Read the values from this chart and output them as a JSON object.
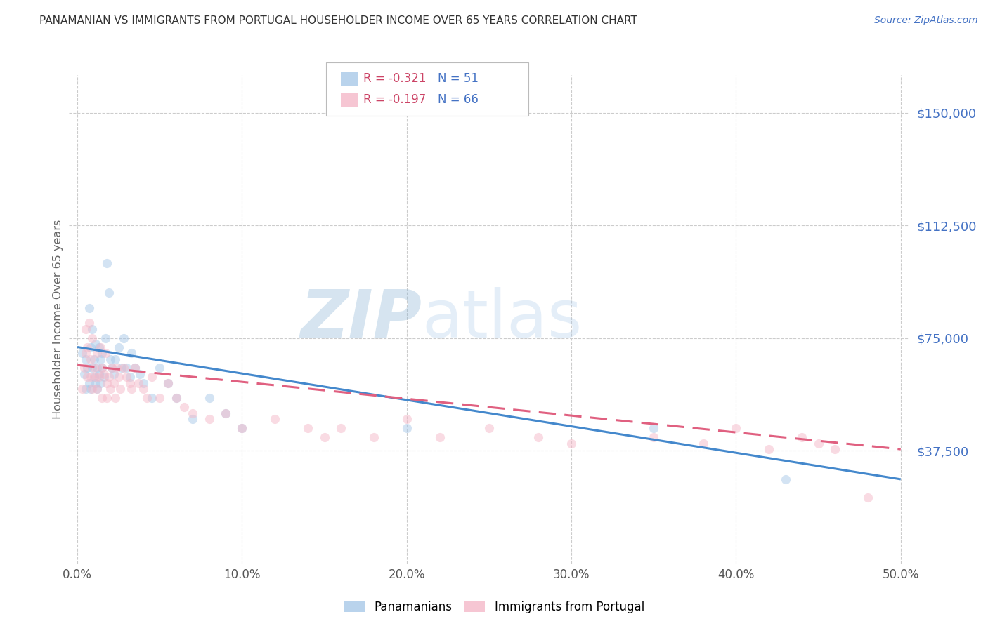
{
  "title": "PANAMANIAN VS IMMIGRANTS FROM PORTUGAL HOUSEHOLDER INCOME OVER 65 YEARS CORRELATION CHART",
  "source": "Source: ZipAtlas.com",
  "ylabel": "Householder Income Over 65 years",
  "xlabel_ticks": [
    "0.0%",
    "10.0%",
    "20.0%",
    "30.0%",
    "40.0%",
    "50.0%"
  ],
  "xlabel_vals": [
    0.0,
    0.1,
    0.2,
    0.3,
    0.4,
    0.5
  ],
  "ylim": [
    0,
    162500
  ],
  "xlim": [
    -0.005,
    0.505
  ],
  "yticks": [
    37500,
    75000,
    112500,
    150000
  ],
  "ytick_labels": [
    "$37,500",
    "$75,000",
    "$112,500",
    "$150,000"
  ],
  "color_blue": "#a8c8e8",
  "color_pink": "#f4b8c8",
  "line_blue": "#4488cc",
  "line_pink": "#e06080",
  "watermark_zip": "ZIP",
  "watermark_atlas": "atlas",
  "legend_R_blue": "-0.321",
  "legend_N_blue": "51",
  "legend_R_pink": "-0.197",
  "legend_N_pink": "66",
  "legend_label_blue": "Panamanians",
  "legend_label_pink": "Immigrants from Portugal",
  "blue_x": [
    0.003,
    0.004,
    0.005,
    0.005,
    0.006,
    0.007,
    0.007,
    0.008,
    0.008,
    0.009,
    0.009,
    0.01,
    0.01,
    0.011,
    0.011,
    0.012,
    0.012,
    0.013,
    0.013,
    0.014,
    0.014,
    0.015,
    0.015,
    0.016,
    0.017,
    0.018,
    0.019,
    0.02,
    0.021,
    0.022,
    0.023,
    0.025,
    0.027,
    0.028,
    0.03,
    0.032,
    0.033,
    0.035,
    0.038,
    0.04,
    0.045,
    0.05,
    0.055,
    0.06,
    0.07,
    0.08,
    0.09,
    0.1,
    0.2,
    0.35,
    0.43
  ],
  "blue_y": [
    70000,
    63000,
    68000,
    58000,
    65000,
    85000,
    60000,
    72000,
    58000,
    65000,
    78000,
    68000,
    62000,
    73000,
    60000,
    65000,
    58000,
    72000,
    63000,
    68000,
    60000,
    70000,
    65000,
    62000,
    75000,
    100000,
    90000,
    68000,
    65000,
    63000,
    68000,
    72000,
    65000,
    75000,
    65000,
    62000,
    70000,
    65000,
    63000,
    60000,
    55000,
    65000,
    60000,
    55000,
    48000,
    55000,
    50000,
    45000,
    45000,
    45000,
    28000
  ],
  "pink_x": [
    0.003,
    0.004,
    0.005,
    0.005,
    0.006,
    0.006,
    0.007,
    0.008,
    0.008,
    0.009,
    0.009,
    0.01,
    0.011,
    0.012,
    0.012,
    0.013,
    0.014,
    0.015,
    0.015,
    0.016,
    0.017,
    0.018,
    0.018,
    0.019,
    0.02,
    0.021,
    0.022,
    0.023,
    0.024,
    0.025,
    0.026,
    0.028,
    0.03,
    0.032,
    0.033,
    0.035,
    0.037,
    0.04,
    0.042,
    0.045,
    0.05,
    0.055,
    0.06,
    0.065,
    0.07,
    0.08,
    0.09,
    0.1,
    0.12,
    0.14,
    0.15,
    0.16,
    0.18,
    0.2,
    0.22,
    0.25,
    0.28,
    0.3,
    0.35,
    0.38,
    0.4,
    0.42,
    0.44,
    0.45,
    0.46,
    0.48
  ],
  "pink_y": [
    58000,
    65000,
    70000,
    78000,
    62000,
    72000,
    80000,
    68000,
    62000,
    75000,
    58000,
    65000,
    62000,
    70000,
    58000,
    62000,
    72000,
    65000,
    55000,
    63000,
    70000,
    60000,
    55000,
    62000,
    58000,
    65000,
    60000,
    55000,
    65000,
    62000,
    58000,
    65000,
    62000,
    60000,
    58000,
    65000,
    60000,
    58000,
    55000,
    62000,
    55000,
    60000,
    55000,
    52000,
    50000,
    48000,
    50000,
    45000,
    48000,
    45000,
    42000,
    45000,
    42000,
    48000,
    42000,
    45000,
    42000,
    40000,
    42000,
    40000,
    45000,
    38000,
    42000,
    40000,
    38000,
    22000
  ],
  "blue_trendline_x": [
    0.0,
    0.5
  ],
  "blue_trendline_y": [
    72000,
    28000
  ],
  "pink_trendline_x": [
    0.0,
    0.5
  ],
  "pink_trendline_y": [
    66000,
    38000
  ],
  "background_color": "#ffffff",
  "grid_color": "#cccccc",
  "title_color": "#333333",
  "axis_label_color": "#666666",
  "ytick_color": "#4472c4",
  "marker_size": 90,
  "marker_alpha": 0.5,
  "line_width": 2.2
}
